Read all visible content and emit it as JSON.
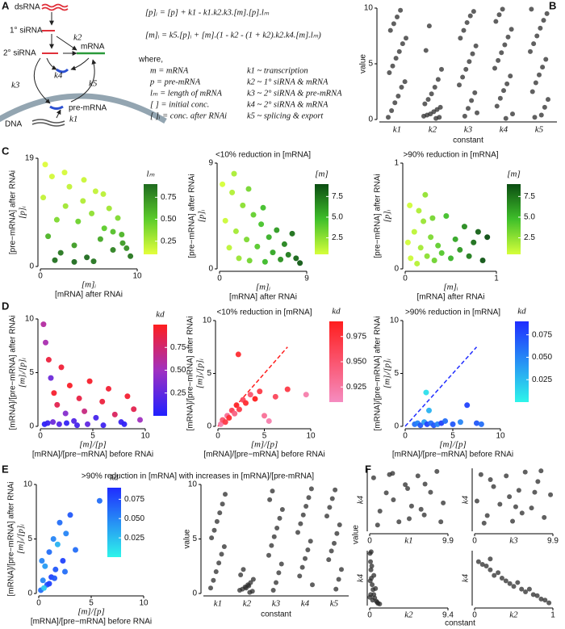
{
  "panel_labels": [
    "A",
    "B",
    "C",
    "D",
    "E",
    "F"
  ],
  "diagram": {
    "labels": {
      "ds_rna": "dsRNA",
      "primary_sirna": "1° siRNA",
      "k2": "k2",
      "secondary_sirna": "2° siRNA",
      "mrna": "mRNA",
      "k4": "k4",
      "k3": "k3",
      "k5": "k5",
      "pre_mrna": "pre-mRNA",
      "dna": "DNA",
      "k1": "k1"
    },
    "equations": [
      "[p]ᵢ = [p] + k1 - k1.k2.k3.[m].[p].lₘ",
      "[m]ᵢ = k5.[p]ᵢ + [m].(1 - k2 - (1 + k2).k2.k4.[m].lₘ)"
    ],
    "where": "where,",
    "symbols": [
      "m = mRNA",
      "p = pre-mRNA",
      "lₘ = length of mRNA",
      "[ ] = initial conc.",
      "[ ]ᵢ = conc. after RNAi"
    ],
    "constants": [
      "k1 ~ transcription",
      "k2 ~ 1° siRNA & mRNA",
      "k3 ~ 2° siRNA & pre-mRNA",
      "k4 ~ 2° siRNA & mRNA",
      "k5 ~ splicing & export"
    ]
  },
  "chart_data": [
    {
      "type": "strip",
      "xlabel": "constant",
      "ylabel": "value",
      "color": "#2b2b2b",
      "categories": [
        "k1",
        "k2",
        "k3",
        "k4",
        "k5"
      ],
      "ylim": [
        0,
        10
      ],
      "yticks": [
        0,
        5,
        10
      ],
      "values": [
        [
          0.2,
          0.8,
          1.5,
          2.1,
          2.9,
          3.4,
          4.2,
          4.8,
          5.5,
          6.1,
          6.8,
          7.3,
          8.0,
          8.6,
          9.2,
          9.8
        ],
        [
          0.1,
          0.2,
          0.3,
          0.4,
          0.5,
          0.7,
          0.9,
          1.1,
          1.4,
          1.8,
          2.3,
          2.9,
          3.6,
          4.5,
          6.2,
          8.4
        ],
        [
          0.3,
          1.0,
          1.7,
          2.4,
          3.1,
          3.8,
          4.5,
          5.2,
          5.9,
          6.6,
          7.3,
          8.0,
          8.7,
          9.3,
          9.7,
          0.6
        ],
        [
          0.5,
          1.2,
          1.9,
          2.6,
          3.2,
          3.9,
          4.6,
          5.3,
          6.0,
          6.7,
          7.4,
          8.1,
          8.8,
          9.4,
          9.9,
          0.1
        ],
        [
          0.4,
          1.1,
          1.8,
          2.5,
          3.3,
          4.0,
          4.7,
          5.4,
          6.1,
          6.8,
          7.5,
          8.2,
          8.9,
          9.5,
          9.9,
          0.2
        ]
      ]
    },
    {
      "type": "scatter",
      "xlabel": "[mRNA] after RNAi",
      "xsymbol": "[m]ᵢ",
      "ylabel": "[pre−mRNA] after RNAi",
      "ysymbol": "[p]ᵢ",
      "xlim": [
        0,
        10
      ],
      "xticks": [
        0,
        10
      ],
      "ylim": [
        0,
        19
      ],
      "yticks": [
        0,
        19
      ],
      "x": [
        0.3,
        0.8,
        1.2,
        1.7,
        2.1,
        2.6,
        3.0,
        3.5,
        3.9,
        4.4,
        4.8,
        5.3,
        5.7,
        6.2,
        6.6,
        7.1,
        7.5,
        8.0,
        8.4,
        8.9,
        9.3,
        0.5,
        1.5,
        2.5,
        3.5,
        4.5,
        5.5,
        6.5,
        7.5,
        8.5
      ],
      "y": [
        12.1,
        5.3,
        15.8,
        8.2,
        2.4,
        10.6,
        14.0,
        3.7,
        7.9,
        11.5,
        1.6,
        9.3,
        13.2,
        4.8,
        6.7,
        10.2,
        2.9,
        8.5,
        5.6,
        3.2,
        1.8,
        17.9,
        1.1,
        16.5,
        0.8,
        15.2,
        0.9,
        12.7,
        6.1,
        4.1
      ],
      "c": [
        0.2,
        0.6,
        0.15,
        0.4,
        0.85,
        0.3,
        0.2,
        0.7,
        0.45,
        0.25,
        0.9,
        0.35,
        0.2,
        0.65,
        0.5,
        0.3,
        0.8,
        0.4,
        0.6,
        0.75,
        0.85,
        0.12,
        0.88,
        0.14,
        0.9,
        0.18,
        0.86,
        0.22,
        0.55,
        0.7
      ],
      "cbar_title": "lₘ",
      "clim": [
        0.1,
        0.9
      ],
      "colormap": [
        "#e4ff3c",
        "#5ccc2a",
        "#1f6b1f"
      ],
      "cbar_ticks": [
        {
          "value": 0.25,
          "label": "0.25"
        },
        {
          "value": 0.5,
          "label": "0.50"
        },
        {
          "value": 0.75,
          "label": "0.75"
        }
      ]
    },
    {
      "type": "scatter",
      "title": "<10% reduction in [mRNA]",
      "xlabel": "[mRNA] after RNAi",
      "xsymbol": "[m]ᵢ",
      "ylabel": "[pre−mRNA] after RNAi",
      "ysymbol": "[p]ᵢ",
      "xlim": [
        0,
        9
      ],
      "xticks": [
        0,
        9
      ],
      "ylim": [
        0,
        9
      ],
      "yticks": [
        0,
        9
      ],
      "x": [
        0.3,
        0.6,
        1.0,
        1.3,
        1.7,
        2.0,
        2.4,
        2.8,
        3.1,
        3.5,
        3.9,
        4.3,
        4.7,
        5.1,
        5.5,
        5.9,
        6.3,
        6.7,
        7.1,
        7.5,
        7.9,
        8.3,
        1.5,
        3.0,
        4.5
      ],
      "y": [
        7.2,
        4.1,
        1.8,
        6.5,
        3.2,
        0.9,
        5.4,
        2.5,
        0.7,
        4.6,
        1.9,
        3.8,
        0.6,
        2.7,
        1.4,
        3.3,
        0.8,
        2.1,
        1.2,
        3.0,
        0.9,
        0.5,
        8.1,
        6.8,
        5.2
      ],
      "c": [
        0.5,
        0.8,
        1.2,
        1.5,
        1.9,
        2.2,
        2.6,
        3.0,
        3.3,
        3.7,
        4.1,
        4.5,
        4.9,
        5.3,
        5.7,
        6.1,
        6.5,
        6.9,
        7.3,
        7.7,
        8.1,
        8.5,
        1.7,
        3.2,
        4.7
      ],
      "cbar_title": "[m]",
      "clim": [
        0.5,
        9
      ],
      "colormap": [
        "#d6ff3a",
        "#3fbf2a",
        "#0b4d12"
      ],
      "cbar_ticks": [
        2.5,
        {
          "value": 5,
          "label": "5.0"
        },
        7.5
      ]
    },
    {
      "type": "scatter",
      "title": ">90% reduction in [mRNA]",
      "xlabel": "[mRNA] after RNAi",
      "xsymbol": "[m]ᵢ",
      "ylabel": "[pre−mRNA] after RNAi",
      "ysymbol": "[p]ᵢ",
      "xlim": [
        0,
        1
      ],
      "xticks": [
        0,
        1
      ],
      "ylim": [
        0,
        1
      ],
      "yticks": [
        0,
        1
      ],
      "x": [
        0.03,
        0.06,
        0.1,
        0.13,
        0.17,
        0.2,
        0.24,
        0.28,
        0.32,
        0.36,
        0.4,
        0.45,
        0.5,
        0.55,
        0.6,
        0.65,
        0.7,
        0.75,
        0.8,
        0.85,
        0.9,
        0.05,
        0.15,
        0.22,
        0.3
      ],
      "y": [
        0.25,
        0.1,
        0.35,
        0.05,
        0.2,
        0.45,
        0.12,
        0.3,
        0.08,
        0.22,
        0.15,
        0.5,
        0.1,
        0.28,
        0.18,
        0.4,
        0.12,
        0.25,
        0.35,
        0.08,
        0.3,
        0.6,
        0.55,
        0.7,
        0.48
      ],
      "c": [
        0.6,
        0.8,
        1.2,
        1.4,
        1.9,
        2.2,
        2.6,
        3.0,
        3.4,
        3.8,
        4.2,
        4.7,
        5.2,
        5.7,
        6.2,
        6.7,
        7.2,
        7.7,
        8.2,
        8.7,
        9.0,
        0.7,
        1.6,
        2.4,
        3.2
      ],
      "cbar_title": "[m]",
      "clim": [
        0.5,
        9
      ],
      "colormap": [
        "#d6ff3a",
        "#3fbf2a",
        "#0b4d12"
      ],
      "cbar_ticks": [
        2.5,
        {
          "value": 5,
          "label": "5.0"
        },
        7.5
      ]
    },
    {
      "type": "scatter",
      "xlabel": "[mRNA]/[pre−mRNA] before RNAi",
      "xsymbol": "[m]/[p]",
      "ylabel": "[mRNA]/[pre−mRNA] after RNAi",
      "ysymbol": "[m]ᵢ/[p]ᵢ",
      "xlim": [
        0,
        10
      ],
      "xticks": [
        0,
        5,
        10
      ],
      "ylim": [
        0,
        10
      ],
      "yticks": [
        0,
        5,
        10
      ],
      "x": [
        0.3,
        0.5,
        0.8,
        1.0,
        1.3,
        1.6,
        2.0,
        2.4,
        2.8,
        3.2,
        3.7,
        4.2,
        4.7,
        5.3,
        5.9,
        6.5,
        7.1,
        7.7,
        8.3,
        8.9,
        9.5,
        0.4,
        0.7,
        1.2,
        1.8,
        2.5,
        3.5,
        4.5,
        6.0,
        8.0
      ],
      "y": [
        9.5,
        7.8,
        6.2,
        4.5,
        3.1,
        2.0,
        5.5,
        1.2,
        3.8,
        0.5,
        2.6,
        1.4,
        4.2,
        0.8,
        2.3,
        3.5,
        1.1,
        0.4,
        2.8,
        1.6,
        0.6,
        0.2,
        0.3,
        0.4,
        0.2,
        0.3,
        0.1,
        0.2,
        0.1,
        0.2
      ],
      "c": [
        0.6,
        0.55,
        0.9,
        0.3,
        0.95,
        0.85,
        0.92,
        0.4,
        0.97,
        0.2,
        0.88,
        0.7,
        0.96,
        0.15,
        0.9,
        0.93,
        0.8,
        0.1,
        0.94,
        0.85,
        0.5,
        0.05,
        0.1,
        0.3,
        0.2,
        0.08,
        0.15,
        0.25,
        0.12,
        0.06
      ],
      "cbar_title": "kd",
      "clim": [
        0,
        1
      ],
      "colormap": [
        "#2020ff",
        "#a030c0",
        "#ff1e1e"
      ],
      "cbar_ticks": [
        {
          "value": 0.25,
          "label": "0.25"
        },
        {
          "value": 0.5,
          "label": "0.50"
        },
        {
          "value": 0.75,
          "label": "0.75"
        }
      ]
    },
    {
      "type": "scatter",
      "title": "<10% reduction in [mRNA]",
      "xlabel": "[mRNA]/[pre−mRNA] before RNAi",
      "xsymbol": "[m]/[p]",
      "ylabel": "[mRNA]/[pre−mRNA] after RNAi",
      "ysymbol": "[m]ᵢ/[p]ᵢ",
      "xlim": [
        0,
        10
      ],
      "xticks": [
        0,
        5,
        10
      ],
      "ylim": [
        0,
        10
      ],
      "yticks": [
        0,
        5,
        10
      ],
      "diagonal": true,
      "diagonal_color": "#ff1e1e",
      "x": [
        0.3,
        0.5,
        0.8,
        1.0,
        1.2,
        1.5,
        1.8,
        2.0,
        2.3,
        2.7,
        3.0,
        3.5,
        4.0,
        4.5,
        5.0,
        5.5,
        6.2,
        7.5,
        9.5,
        2.2
      ],
      "y": [
        0.2,
        0.6,
        0.4,
        1.0,
        0.8,
        1.5,
        1.2,
        2.0,
        1.6,
        2.5,
        2.2,
        3.0,
        2.6,
        3.3,
        1.0,
        0.5,
        2.8,
        3.5,
        3.0,
        6.8
      ],
      "c": [
        0.92,
        0.95,
        0.97,
        0.93,
        0.98,
        0.96,
        0.94,
        0.985,
        0.97,
        0.96,
        0.98,
        0.95,
        0.99,
        0.97,
        0.93,
        0.92,
        0.96,
        0.97,
        0.92,
        0.98
      ],
      "cbar_title": "kd",
      "clim": [
        0.91,
        0.99
      ],
      "colormap": [
        "#f58cc0",
        "#ff1e1e"
      ],
      "cbar_ticks": [
        0.925,
        {
          "value": 0.95,
          "label": "0.950"
        },
        0.975
      ]
    },
    {
      "type": "scatter",
      "title": ">90% reduction in [mRNA]",
      "xlabel": "[mRNA]/[pre−mRNA] before RNAi",
      "xsymbol": "[m]/[p]",
      "ylabel": "[mRNA]/[pre−mRNA] after RNAi",
      "ysymbol": "[m]ᵢ/[p]ᵢ",
      "xlim": [
        0,
        10
      ],
      "xticks": [
        0,
        5,
        10
      ],
      "ylim": [
        0,
        10
      ],
      "yticks": [
        0,
        5,
        10
      ],
      "diagonal": true,
      "diagonal_color": "#1f2cff",
      "x": [
        1.0,
        1.3,
        1.6,
        2.0,
        2.3,
        2.7,
        3.0,
        3.4,
        3.8,
        4.2,
        5.0,
        5.8,
        6.5,
        7.5,
        8.0,
        2.5,
        2.2
      ],
      "y": [
        0.2,
        0.3,
        0.1,
        0.4,
        0.2,
        0.3,
        0.1,
        0.2,
        0.3,
        0.5,
        0.2,
        0.4,
        2.0,
        0.3,
        0.2,
        1.5,
        3.2
      ],
      "c": [
        0.06,
        0.05,
        0.07,
        0.04,
        0.08,
        0.06,
        0.07,
        0.05,
        0.08,
        0.06,
        0.07,
        0.05,
        0.08,
        0.07,
        0.06,
        0.03,
        0.01
      ],
      "cbar_title": "kd",
      "clim": [
        0,
        0.09
      ],
      "colormap": [
        "#2ef5ea",
        "#1f2cff"
      ],
      "cbar_ticks": [
        0.025,
        {
          "value": 0.05,
          "label": "0.050"
        },
        0.075
      ]
    },
    {
      "type": "scatter",
      "title": ">90% reduction in [mRNA] with increases in [mRNA]/[pre-mRNA]",
      "xlabel": "[mRNA]/[pre−mRNA] before RNAi",
      "xsymbol": "[m]/[p]",
      "ylabel": "[mRNA]/[pre−mRNA] after RNAi",
      "ysymbol": "[m]ᵢ/[p]ᵢ",
      "xlim": [
        0,
        10
      ],
      "xticks": [
        0,
        5,
        10
      ],
      "ylim": [
        0,
        10
      ],
      "yticks": [
        0,
        5,
        10
      ],
      "x": [
        0.2,
        0.4,
        0.6,
        0.8,
        1.0,
        1.2,
        1.4,
        1.6,
        1.8,
        2.0,
        2.3,
        2.6,
        3.0,
        3.5,
        0.5,
        1.0,
        1.5,
        2.5,
        5.8,
        0.3
      ],
      "y": [
        0.3,
        1.2,
        2.5,
        0.8,
        3.8,
        1.5,
        5.0,
        2.2,
        4.5,
        6.5,
        3.0,
        5.5,
        7.2,
        4.0,
        0.5,
        0.9,
        1.4,
        2.0,
        8.5,
        3.0
      ],
      "c": [
        0.06,
        0.05,
        0.04,
        0.07,
        0.06,
        0.08,
        0.05,
        0.07,
        0.03,
        0.06,
        0.08,
        0.05,
        0.07,
        0.06,
        0.02,
        0.08,
        0.07,
        0.06,
        0.06,
        0.05
      ],
      "cbar_title": "kd",
      "clim": [
        0,
        0.09
      ],
      "colormap": [
        "#2ef5ea",
        "#1f2cff"
      ],
      "cbar_ticks": [
        0.025,
        {
          "value": 0.05,
          "label": "0.050"
        },
        0.075
      ]
    },
    {
      "type": "strip",
      "xlabel": "constant",
      "ylabel": "value",
      "color": "#2b2b2b",
      "categories": [
        "k1",
        "k2",
        "k3",
        "k4",
        "k5"
      ],
      "ylim": [
        0,
        10
      ],
      "yticks": [
        0,
        5,
        10
      ],
      "values": [
        [
          0.5,
          1.2,
          2.0,
          2.8,
          3.6,
          4.3,
          5.1,
          5.8,
          6.6,
          7.4,
          8.2,
          9.1
        ],
        [
          0.1,
          0.2,
          0.3,
          0.4,
          0.6,
          0.8,
          1.0,
          1.3,
          1.7,
          2.2,
          0.5,
          0.7
        ],
        [
          0.3,
          1.0,
          1.9,
          2.7,
          3.5,
          4.4,
          5.2,
          6.0,
          6.9,
          7.7,
          8.6,
          9.4
        ],
        [
          0.8,
          1.6,
          2.4,
          3.2,
          4.0,
          4.8,
          5.6,
          6.4,
          7.2,
          8.0,
          8.8,
          9.6
        ],
        [
          0.4,
          1.3,
          2.2,
          3.1,
          3.9,
          4.6,
          5.5,
          6.3,
          7.1,
          7.9,
          8.7,
          9.5
        ]
      ]
    },
    {
      "type": "scatter",
      "xsymbol": "k1",
      "ysymbol": "k4",
      "shared_ylabel": "value",
      "shared_xlabel": "constant",
      "color": "#2b2b2b",
      "xlim": [
        0,
        9.9
      ],
      "xticks": [
        0,
        9.9
      ],
      "ylim": [
        0,
        10
      ],
      "x": [
        0.5,
        1.3,
        2.1,
        2.9,
        3.7,
        4.5,
        5.3,
        6.1,
        6.9,
        7.7,
        8.5,
        9.3,
        1.0,
        3.0,
        5.0,
        7.0,
        9.0,
        2.5,
        4.8,
        6.5
      ],
      "y": [
        8.5,
        3.2,
        6.1,
        9.2,
        1.5,
        7.4,
        4.0,
        8.8,
        2.6,
        6.2,
        9.5,
        4.5,
        1.0,
        5.0,
        2.0,
        7.5,
        1.5,
        9.0,
        6.8,
        3.5
      ]
    },
    {
      "type": "scatter",
      "xsymbol": "k3",
      "ysymbol": "k4",
      "color": "#2b2b2b",
      "xlim": [
        0,
        9.9
      ],
      "xticks": [
        0,
        9.9
      ],
      "ylim": [
        0,
        10
      ],
      "x": [
        0.8,
        1.6,
        2.4,
        3.2,
        4.0,
        4.8,
        5.6,
        6.4,
        7.2,
        8.0,
        8.8,
        9.6,
        0.3,
        2.0,
        4.4,
        6.0,
        8.4,
        1.2,
        5.2,
        7.6
      ],
      "y": [
        9.0,
        2.5,
        7.1,
        4.3,
        8.8,
        1.6,
        6.5,
        9.4,
        3.7,
        7.9,
        2.2,
        5.8,
        4.8,
        8.2,
        5.5,
        2.9,
        9.6,
        1.3,
        3.9,
        6.2
      ]
    },
    {
      "type": "scatter",
      "xsymbol": "k2",
      "ysymbol": "k4",
      "color": "#2b2b2b",
      "xlim": [
        0,
        9.4
      ],
      "xticks": [
        0,
        9.4
      ],
      "ylim": [
        0,
        10
      ],
      "x": [
        0.05,
        0.1,
        0.15,
        0.2,
        0.3,
        0.4,
        0.5,
        0.6,
        0.8,
        1.0,
        0.07,
        0.12,
        0.25,
        0.35,
        0.5,
        0.7,
        0.9,
        1.2,
        0.03,
        0.18
      ],
      "y": [
        9.5,
        8.0,
        6.5,
        5.0,
        3.8,
        2.9,
        2.0,
        1.4,
        0.8,
        0.4,
        4.5,
        2.0,
        7.2,
        1.0,
        5.5,
        3.1,
        0.6,
        0.3,
        1.5,
        9.8
      ]
    },
    {
      "type": "scatter",
      "xsymbol": "k2",
      "ysymbol": "k4",
      "color": "#2b2b2b",
      "xlim": [
        0,
        1
      ],
      "xticks": [
        0,
        1
      ],
      "ylim": [
        0,
        1
      ],
      "x": [
        0.05,
        0.1,
        0.15,
        0.2,
        0.25,
        0.3,
        0.35,
        0.4,
        0.45,
        0.5,
        0.55,
        0.6,
        0.65,
        0.7,
        0.75,
        0.8,
        0.85,
        0.9,
        0.95,
        0.2
      ],
      "y": [
        0.8,
        0.75,
        0.72,
        0.65,
        0.55,
        0.6,
        0.5,
        0.45,
        0.4,
        0.35,
        0.42,
        0.3,
        0.25,
        0.3,
        0.2,
        0.18,
        0.12,
        0.1,
        0.05,
        0.85
      ]
    }
  ]
}
